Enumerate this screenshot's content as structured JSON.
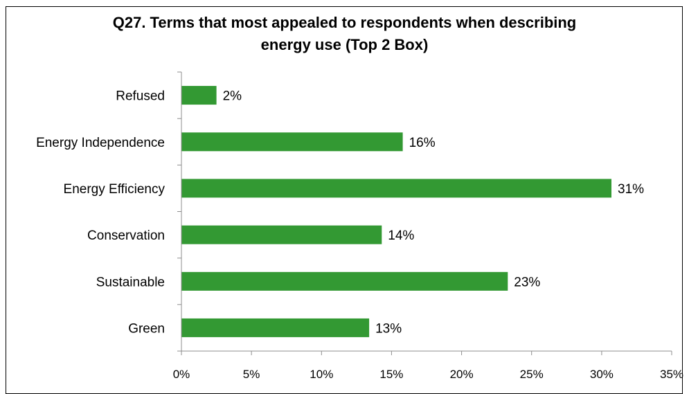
{
  "chart_data": {
    "type": "bar",
    "orientation": "horizontal",
    "title_lines": [
      "Q27. Terms that most appealed to respondents when describing",
      "energy use (Top 2 Box)"
    ],
    "categories": [
      "Refused",
      "Energy Independence",
      "Energy Efficiency",
      "Conservation",
      "Sustainable",
      "Green"
    ],
    "values": [
      2.5,
      15.8,
      30.7,
      14.3,
      23.3,
      13.4
    ],
    "data_labels": [
      "2%",
      "16%",
      "31%",
      "14%",
      "23%",
      "13%"
    ],
    "xlim": [
      0,
      35
    ],
    "xticks": [
      0,
      5,
      10,
      15,
      20,
      25,
      30,
      35
    ],
    "xtick_labels": [
      "0%",
      "5%",
      "10%",
      "15%",
      "20%",
      "25%",
      "30%",
      "35%"
    ],
    "xlabel": "",
    "ylabel": "",
    "grid": false,
    "legend": "none",
    "bar_color": "#339933",
    "axis_color": "#8c8c8c"
  }
}
